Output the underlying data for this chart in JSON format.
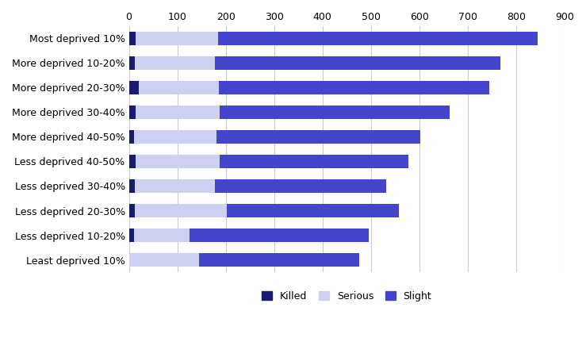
{
  "categories": [
    "Most deprived 10%",
    "More deprived 10-20%",
    "More deprived 20-30%",
    "More deprived 30-40%",
    "More deprived 40-50%",
    "Less deprived 40-50%",
    "Less deprived 30-40%",
    "Less deprived 20-30%",
    "Less deprived 10-20%",
    "Least deprived 10%"
  ],
  "killed": [
    14,
    12,
    20,
    13,
    11,
    13,
    12,
    12,
    10,
    0
  ],
  "serious": [
    170,
    165,
    165,
    175,
    170,
    175,
    165,
    190,
    115,
    145
  ],
  "slight": [
    660,
    590,
    560,
    475,
    420,
    390,
    355,
    355,
    370,
    330
  ],
  "color_killed": "#1a1a6e",
  "color_serious": "#cdd0f0",
  "color_slight": "#4444cc",
  "xlim": [
    0,
    900
  ],
  "xticks": [
    0,
    100,
    200,
    300,
    400,
    500,
    600,
    700,
    800,
    900
  ],
  "grid_color": "#cccccc",
  "background_color": "#ffffff",
  "legend_labels": [
    "Killed",
    "Serious",
    "Slight"
  ]
}
